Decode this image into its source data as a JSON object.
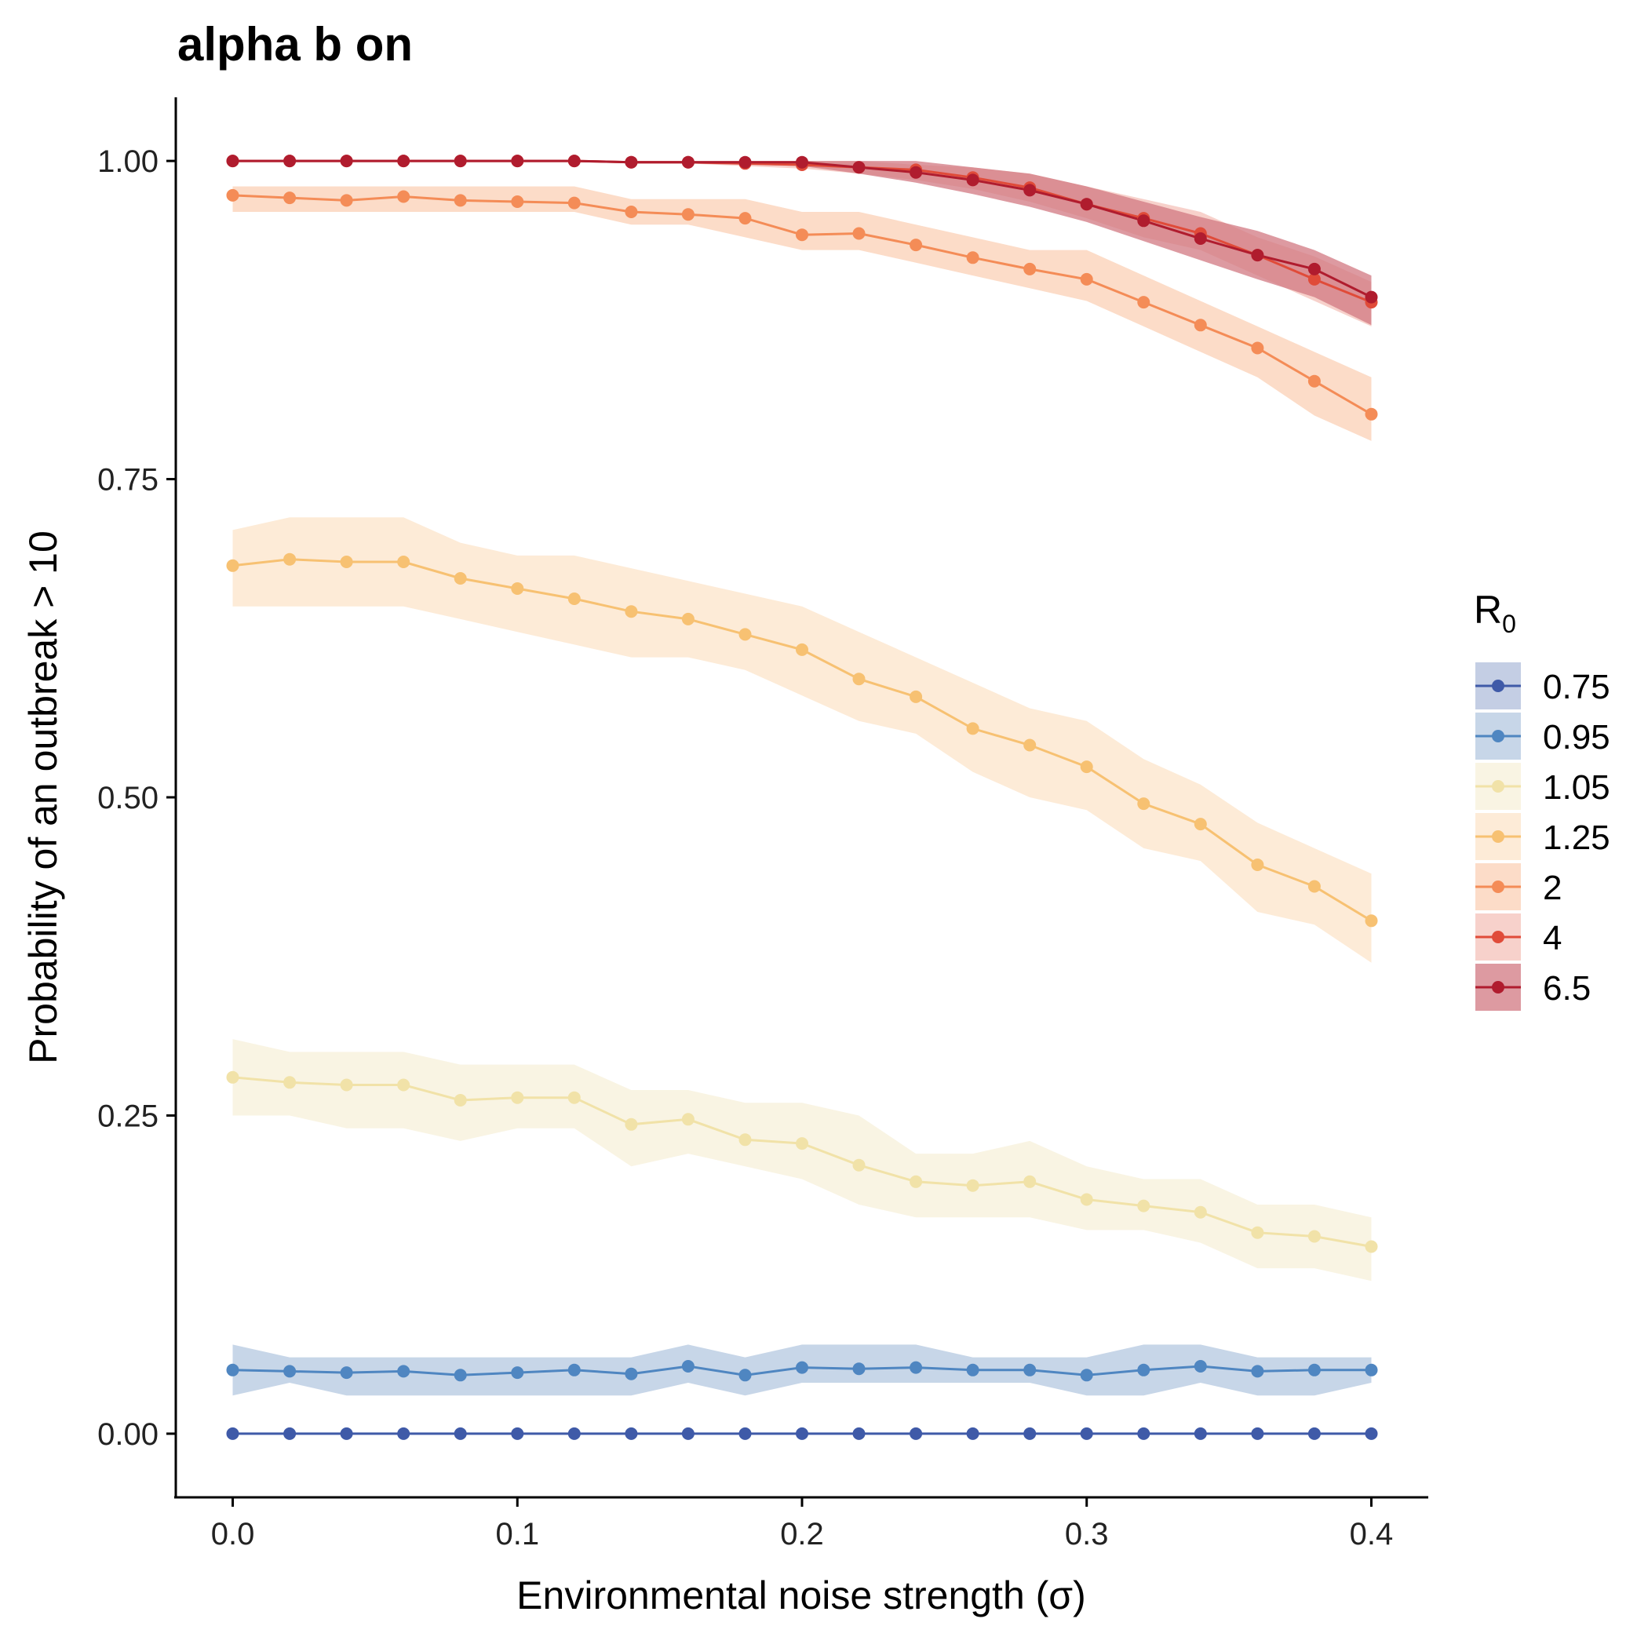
{
  "chart_data": {
    "type": "line",
    "title": "alpha b on",
    "xlabel": "Environmental noise strength (σ)",
    "ylabel": "Probability of an outbreak > 10",
    "xlim": [
      -0.02,
      0.42
    ],
    "ylim": [
      -0.05,
      1.05
    ],
    "x_ticks": [
      0.0,
      0.1,
      0.2,
      0.3,
      0.4
    ],
    "x_tick_labels": [
      "0.0",
      "0.1",
      "0.2",
      "0.3",
      "0.4"
    ],
    "y_ticks": [
      0.0,
      0.25,
      0.5,
      0.75,
      1.0
    ],
    "y_tick_labels": [
      "0.00",
      "0.25",
      "0.50",
      "0.75",
      "1.00"
    ],
    "grid": false,
    "legend": {
      "title": "R",
      "title_subscript": "0",
      "placement": "right"
    },
    "x": [
      0.0,
      0.02,
      0.04,
      0.06,
      0.08,
      0.1,
      0.12,
      0.14,
      0.16,
      0.18,
      0.2,
      0.22,
      0.24,
      0.26,
      0.28,
      0.3,
      0.32,
      0.34,
      0.36,
      0.38,
      0.4
    ],
    "series": [
      {
        "name": "0.75",
        "color": "#3F5AA8",
        "fill": "#C4CEE4",
        "fill_opacity": 1,
        "values": [
          0,
          0,
          0,
          0,
          0,
          0,
          0,
          0,
          0,
          0,
          0,
          0,
          0,
          0,
          0,
          0,
          0,
          0,
          0,
          0,
          0
        ],
        "lower": [
          0,
          0,
          0,
          0,
          0,
          0,
          0,
          0,
          0,
          0,
          0,
          0,
          0,
          0,
          0,
          0,
          0,
          0,
          0,
          0,
          0
        ],
        "upper": [
          0,
          0,
          0,
          0,
          0,
          0,
          0,
          0,
          0,
          0,
          0,
          0,
          0,
          0,
          0,
          0,
          0,
          0,
          0,
          0,
          0
        ]
      },
      {
        "name": "0.95",
        "color": "#4F86C1",
        "fill": "#C7D6E8",
        "fill_opacity": 1,
        "values": [
          0.05,
          0.049,
          0.048,
          0.049,
          0.046,
          0.048,
          0.05,
          0.047,
          0.053,
          0.046,
          0.052,
          0.051,
          0.052,
          0.05,
          0.05,
          0.046,
          0.05,
          0.053,
          0.049,
          0.05,
          0.05
        ],
        "lower": [
          0.03,
          0.04,
          0.03,
          0.03,
          0.03,
          0.03,
          0.03,
          0.03,
          0.04,
          0.03,
          0.04,
          0.04,
          0.04,
          0.04,
          0.04,
          0.03,
          0.03,
          0.04,
          0.03,
          0.03,
          0.04
        ],
        "upper": [
          0.07,
          0.06,
          0.06,
          0.06,
          0.06,
          0.06,
          0.06,
          0.06,
          0.07,
          0.06,
          0.07,
          0.07,
          0.07,
          0.06,
          0.06,
          0.06,
          0.07,
          0.07,
          0.06,
          0.06,
          0.06
        ]
      },
      {
        "name": "1.05",
        "color": "#F1E2A8",
        "fill": "#F9F4E3",
        "fill_opacity": 1,
        "values": [
          0.28,
          0.276,
          0.274,
          0.274,
          0.262,
          0.264,
          0.264,
          0.243,
          0.247,
          0.231,
          0.228,
          0.211,
          0.198,
          0.195,
          0.198,
          0.184,
          0.179,
          0.174,
          0.158,
          0.155,
          0.147
        ],
        "lower": [
          0.25,
          0.25,
          0.24,
          0.24,
          0.23,
          0.24,
          0.24,
          0.21,
          0.22,
          0.21,
          0.2,
          0.18,
          0.17,
          0.17,
          0.17,
          0.16,
          0.16,
          0.15,
          0.13,
          0.13,
          0.12
        ],
        "upper": [
          0.31,
          0.3,
          0.3,
          0.3,
          0.29,
          0.29,
          0.29,
          0.27,
          0.27,
          0.26,
          0.26,
          0.25,
          0.22,
          0.22,
          0.23,
          0.21,
          0.2,
          0.2,
          0.18,
          0.18,
          0.17
        ]
      },
      {
        "name": "1.25",
        "color": "#F7C172",
        "fill": "#FDEBD7",
        "fill_opacity": 1,
        "values": [
          0.682,
          0.687,
          0.685,
          0.685,
          0.672,
          0.664,
          0.656,
          0.646,
          0.64,
          0.628,
          0.616,
          0.593,
          0.579,
          0.554,
          0.541,
          0.524,
          0.495,
          0.479,
          0.447,
          0.43,
          0.403
        ],
        "lower": [
          0.65,
          0.65,
          0.65,
          0.65,
          0.64,
          0.63,
          0.62,
          0.61,
          0.61,
          0.6,
          0.58,
          0.56,
          0.55,
          0.52,
          0.5,
          0.49,
          0.46,
          0.45,
          0.41,
          0.4,
          0.37
        ],
        "upper": [
          0.71,
          0.72,
          0.72,
          0.72,
          0.7,
          0.69,
          0.69,
          0.68,
          0.67,
          0.66,
          0.65,
          0.63,
          0.61,
          0.59,
          0.57,
          0.56,
          0.53,
          0.51,
          0.48,
          0.46,
          0.44
        ]
      },
      {
        "name": "2",
        "color": "#F48C57",
        "fill": "#FCDCC8",
        "fill_opacity": 1,
        "values": [
          0.973,
          0.971,
          0.969,
          0.972,
          0.969,
          0.968,
          0.967,
          0.96,
          0.958,
          0.955,
          0.942,
          0.943,
          0.934,
          0.924,
          0.915,
          0.907,
          0.889,
          0.871,
          0.853,
          0.827,
          0.801
        ],
        "lower": [
          0.96,
          0.96,
          0.96,
          0.96,
          0.96,
          0.96,
          0.96,
          0.95,
          0.95,
          0.94,
          0.93,
          0.93,
          0.92,
          0.91,
          0.9,
          0.89,
          0.87,
          0.85,
          0.83,
          0.8,
          0.78
        ],
        "upper": [
          0.98,
          0.98,
          0.98,
          0.98,
          0.98,
          0.98,
          0.98,
          0.97,
          0.97,
          0.97,
          0.96,
          0.96,
          0.95,
          0.94,
          0.93,
          0.93,
          0.91,
          0.89,
          0.87,
          0.85,
          0.83
        ]
      },
      {
        "name": "4",
        "color": "#E04B39",
        "fill": "#F4C2BA",
        "fill_opacity": 0.75,
        "values": [
          1,
          1,
          1,
          1,
          1,
          1,
          1,
          0.999,
          0.999,
          0.998,
          0.997,
          0.995,
          0.993,
          0.987,
          0.979,
          0.966,
          0.955,
          0.943,
          0.926,
          0.907,
          0.889
        ],
        "lower": [
          1,
          1,
          1,
          1,
          1,
          1,
          1,
          0.998,
          0.998,
          0.996,
          0.994,
          0.99,
          0.985,
          0.978,
          0.968,
          0.955,
          0.94,
          0.93,
          0.91,
          0.89,
          0.87
        ],
        "upper": [
          1,
          1,
          1,
          1,
          1,
          1,
          1,
          1,
          1,
          1,
          1,
          1,
          0.997,
          0.995,
          0.99,
          0.98,
          0.97,
          0.96,
          0.94,
          0.925,
          0.905
        ]
      },
      {
        "name": "6.5",
        "color": "#B01C2E",
        "fill": "#D27882",
        "fill_opacity": 0.75,
        "values": [
          1,
          1,
          1,
          1,
          1,
          1,
          1,
          0.999,
          0.999,
          0.999,
          0.999,
          0.995,
          0.991,
          0.985,
          0.977,
          0.966,
          0.953,
          0.939,
          0.926,
          0.915,
          0.893
        ],
        "lower": [
          1,
          1,
          1,
          1,
          1,
          1,
          1,
          0.998,
          0.998,
          0.997,
          0.996,
          0.99,
          0.983,
          0.974,
          0.964,
          0.952,
          0.937,
          0.922,
          0.907,
          0.893,
          0.871
        ],
        "upper": [
          1,
          1,
          1,
          1,
          1,
          1,
          1,
          1,
          1,
          1,
          1,
          1,
          1,
          0.995,
          0.99,
          0.98,
          0.968,
          0.956,
          0.945,
          0.93,
          0.91
        ]
      }
    ]
  }
}
